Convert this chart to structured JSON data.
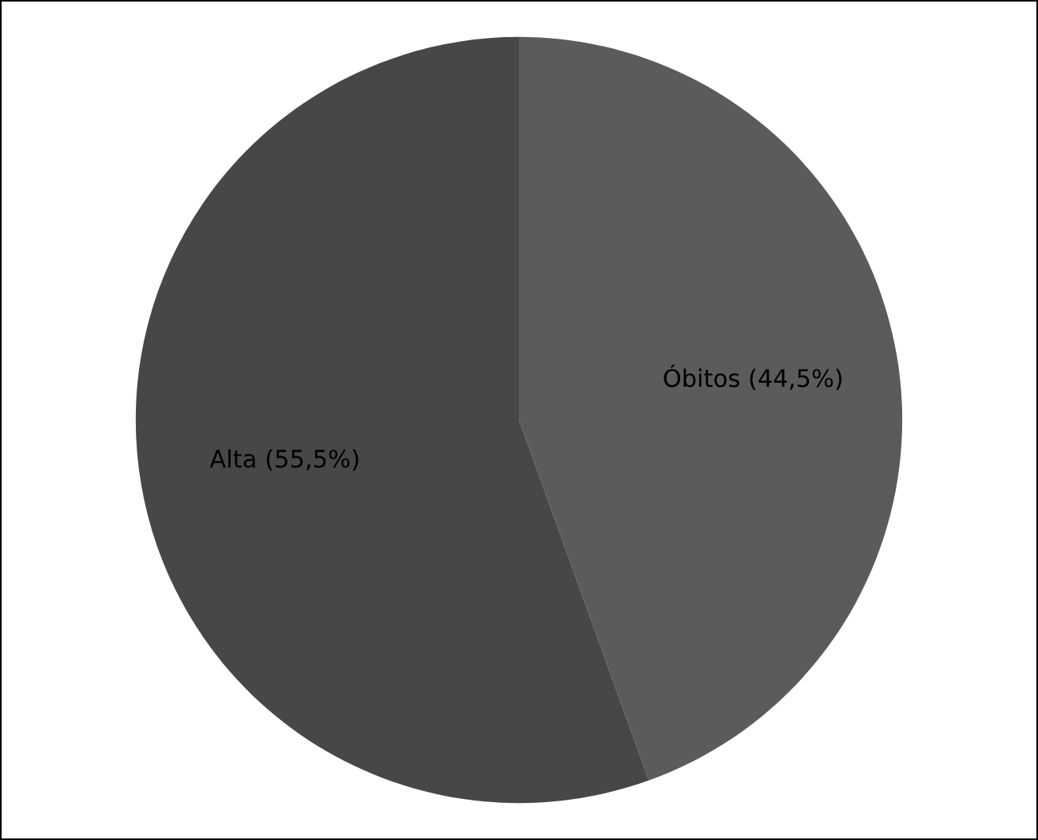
{
  "chart_data": {
    "type": "pie",
    "categories": [
      "Óbitos (44,5%)",
      "Alta (55,5%)"
    ],
    "values": [
      44.5,
      55.5
    ],
    "colors": [
      "#5b5b5b",
      "#474747"
    ],
    "legend": false
  }
}
